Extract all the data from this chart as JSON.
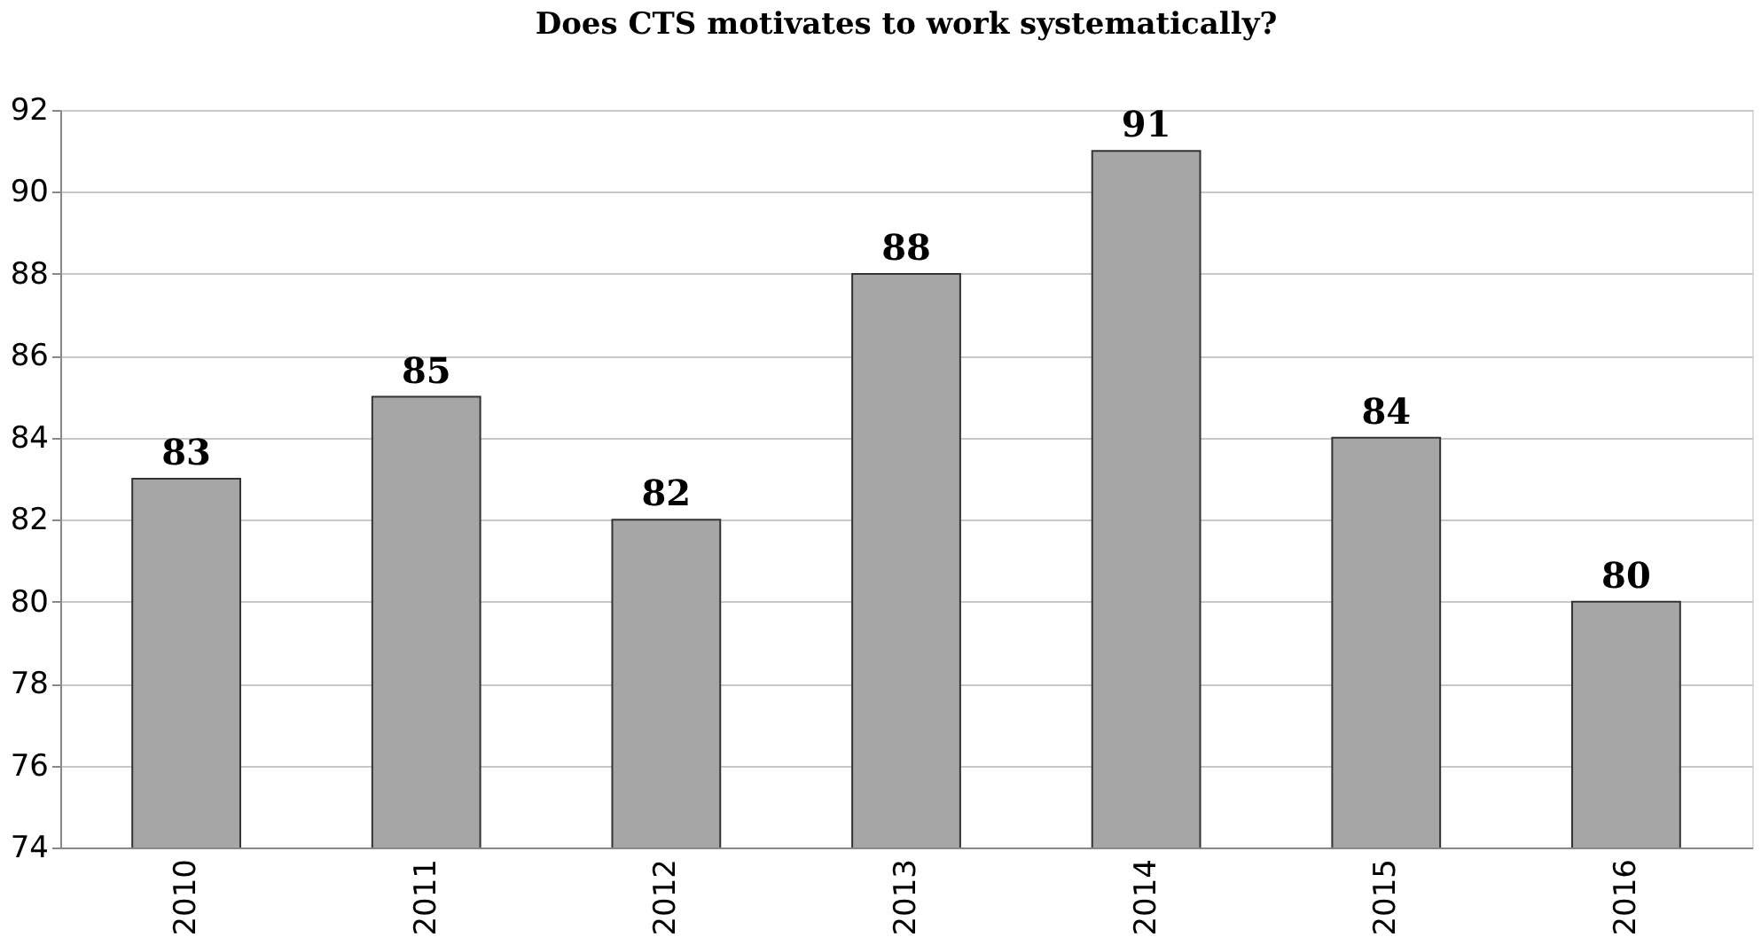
{
  "chart_data": {
    "type": "bar",
    "title": "Does CTS motivates to work systematically?",
    "categories": [
      "2010",
      "2011",
      "2012",
      "2013",
      "2014",
      "2015",
      "2016"
    ],
    "values": [
      83,
      85,
      82,
      88,
      91,
      84,
      80
    ],
    "color": "#a6a6a6",
    "ylim": [
      74,
      92
    ],
    "yticks": [
      74,
      76,
      78,
      80,
      82,
      84,
      86,
      88,
      90,
      92
    ],
    "grid": "y",
    "data_labels": true
  }
}
